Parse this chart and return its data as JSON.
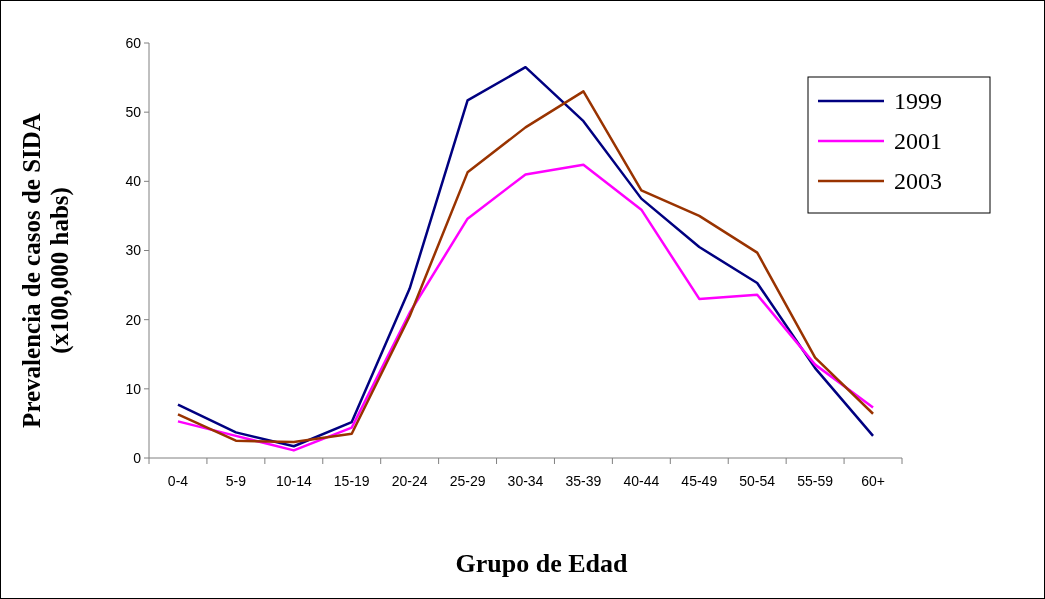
{
  "chart_data": {
    "type": "line",
    "xlabel": "Grupo de Edad",
    "ylabel": "Prevalencia de casos de SIDA\n(x100,000 habs)",
    "categories": [
      "0-4",
      "5-9",
      "10-14",
      "15-19",
      "20-24",
      "25-29",
      "30-34",
      "35-39",
      "40-44",
      "45-49",
      "50-54",
      "55-59",
      "60+"
    ],
    "series": [
      {
        "name": "1999",
        "color": "#000080",
        "values": [
          7.7,
          3.7,
          1.7,
          5.2,
          24.5,
          51.7,
          56.5,
          48.7,
          37.5,
          30.5,
          25.3,
          13,
          3.2
        ]
      },
      {
        "name": "2001",
        "color": "#ff00ff",
        "values": [
          5.3,
          3.2,
          1.1,
          4.4,
          21,
          34.6,
          41,
          42.4,
          35.9,
          23,
          23.6,
          13.5,
          7.3
        ]
      },
      {
        "name": "2003",
        "color": "#993300",
        "values": [
          6.3,
          2.5,
          2.3,
          3.5,
          20.5,
          41.3,
          47.8,
          53,
          38.7,
          35,
          29.7,
          14.5,
          6.4
        ]
      }
    ],
    "ylim": [
      0,
      60
    ],
    "yticks": [
      0,
      10,
      20,
      30,
      40,
      50,
      60
    ],
    "grid": false,
    "legend": "top right",
    "marker": "none",
    "line_style": "solid"
  }
}
